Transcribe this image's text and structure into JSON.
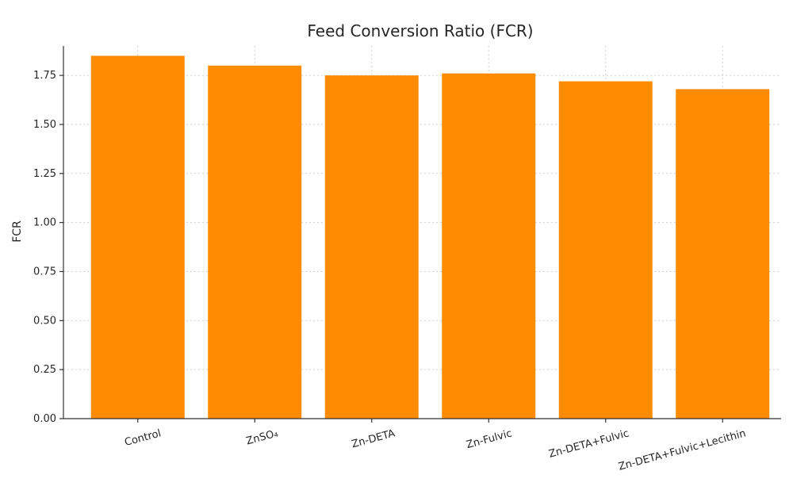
{
  "chart_data": {
    "type": "bar",
    "title": "Feed Conversion Ratio (FCR)",
    "xlabel": "",
    "ylabel": "FCR",
    "categories": [
      "Control",
      "ZnSO₄",
      "Zn-DETA",
      "Zn-Fulvic",
      "Zn-DETA+Fulvic",
      "Zn-DETA+Fulvic+Lecithin"
    ],
    "values": [
      1.85,
      1.8,
      1.75,
      1.76,
      1.72,
      1.68
    ],
    "ylim": [
      0,
      1.9
    ],
    "yticks": [
      "0.00",
      "0.25",
      "0.50",
      "0.75",
      "1.00",
      "1.25",
      "1.50",
      "1.75"
    ],
    "grid": true,
    "bar_color": "#ff8c00"
  }
}
